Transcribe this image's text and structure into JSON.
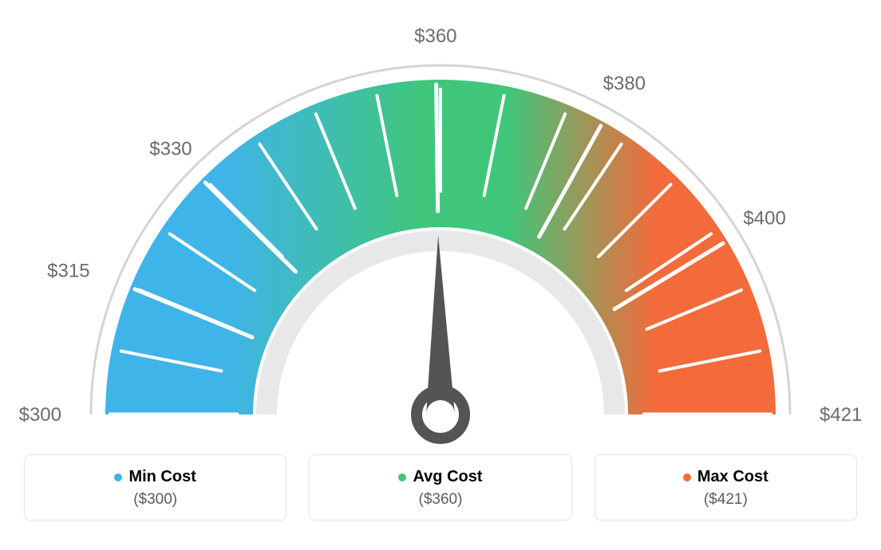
{
  "gauge": {
    "type": "gauge",
    "min": 300,
    "max": 421,
    "value": 360,
    "ticks": [
      {
        "value": 300,
        "label": "$300"
      },
      {
        "value": 315,
        "label": "$315"
      },
      {
        "value": 330,
        "label": "$330"
      },
      {
        "value": 360,
        "label": "$360"
      },
      {
        "value": 380,
        "label": "$380"
      },
      {
        "value": 400,
        "label": "$400"
      },
      {
        "value": 421,
        "label": "$421"
      }
    ],
    "minor_ticks": 17,
    "arc_colors": {
      "start": "#3fb4e8",
      "mid": "#3fc67a",
      "end": "#f36b3b"
    },
    "outer_arc_color": "#d4d4d4",
    "inner_arc_color": "#e8e8e8",
    "tick_color": "#ffffff",
    "needle_color": "#545454",
    "label_color": "#6b6b6b",
    "label_fontsize": 24,
    "background_color": "#ffffff",
    "outer_radius": 420,
    "inner_radius": 235,
    "start_angle_deg": 180,
    "end_angle_deg": 0
  },
  "legend": {
    "min": {
      "label": "Min Cost",
      "value": "($300)",
      "color": "#3fb4e8"
    },
    "avg": {
      "label": "Avg Cost",
      "value": "($360)",
      "color": "#3fc67a"
    },
    "max": {
      "label": "Max Cost",
      "value": "($421)",
      "color": "#f36b3b"
    }
  }
}
